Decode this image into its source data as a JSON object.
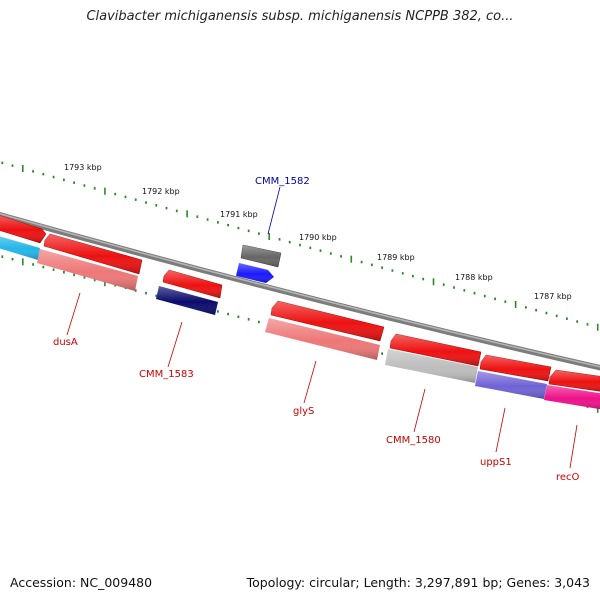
{
  "title": "Clavibacter michiganensis subsp. michiganensis NCPPB 382, co...",
  "footer": {
    "accession": "Accession: NC_009480",
    "topology": "Topology: circular; Length: 3,297,891 bp; Genes: 3,043"
  },
  "colors": {
    "backbone": "#8a8a8a",
    "tick": "#2a8a2a",
    "forward_label": "#cc0000",
    "reverse_label": "#0000aa",
    "gene_red": "#ee1111",
    "gene_pink": "#ee7777",
    "gene_navy": "#0b0b6e",
    "gene_blue": "#1a1aff",
    "gene_grey": "#666666",
    "gene_lightgrey": "#bdbdbd",
    "gene_cyan": "#22b6e8",
    "gene_purple": "#6f62d6",
    "gene_magenta": "#ee1189"
  },
  "scale_labels": [
    "1793 kbp",
    "1792 kbp",
    "1791 kbp",
    "1790 kbp",
    "1789 kbp",
    "1788 kbp",
    "1787 kbp"
  ],
  "gene_labels": [
    "CMM_1582",
    "dusA",
    "CMM_1583",
    "glyS",
    "CMM_1580",
    "uppS1",
    "recO"
  ]
}
